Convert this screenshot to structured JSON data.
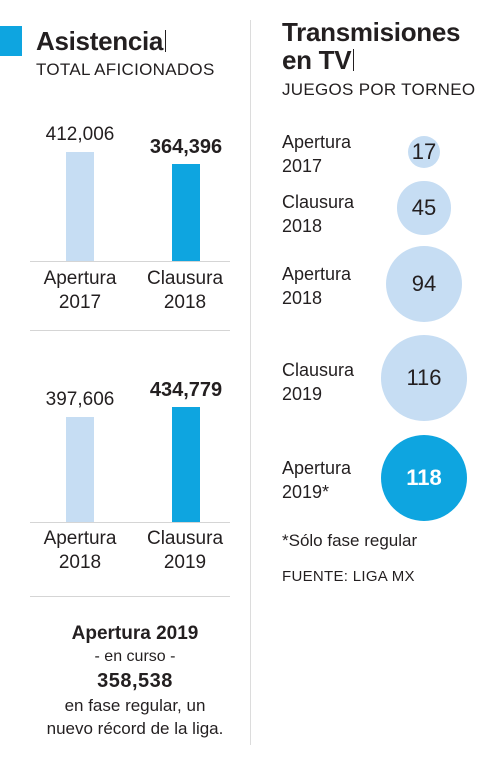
{
  "left": {
    "title": "Asistencia",
    "subtitle": "TOTAL AFICIONADOS"
  },
  "right": {
    "title_line1": "Transmisiones",
    "title_line2": "en TV",
    "subtitle": "JUEGOS POR TORNEO"
  },
  "chart_data": [
    {
      "type": "bar",
      "title": "Asistencia",
      "subtitle": "TOTAL AFICIONADOS",
      "categories": [
        [
          "Apertura",
          "2017"
        ],
        [
          "Clausura",
          "2018"
        ]
      ],
      "values": [
        412006,
        364396
      ],
      "value_labels": [
        "412,006",
        "364,396"
      ],
      "colors": [
        "#c6ddf3",
        "#0ea5e0"
      ]
    },
    {
      "type": "bar",
      "categories": [
        [
          "Apertura",
          "2018"
        ],
        [
          "Clausura",
          "2019"
        ]
      ],
      "values": [
        397606,
        434779
      ],
      "value_labels": [
        "397,606",
        "434,779"
      ],
      "colors": [
        "#c6ddf3",
        "#0ea5e0"
      ]
    },
    {
      "type": "bubble",
      "title": "Transmisiones en TV",
      "subtitle": "JUEGOS POR TORNEO",
      "categories": [
        [
          "Apertura",
          "2017"
        ],
        [
          "Clausura",
          "2018"
        ],
        [
          "Apertura",
          "2018"
        ],
        [
          "Clausura",
          "2019"
        ],
        [
          "Apertura",
          "2019*"
        ]
      ],
      "values": [
        17,
        45,
        94,
        116,
        118
      ],
      "colors": [
        "#c6ddf3",
        "#c6ddf3",
        "#c6ddf3",
        "#c6ddf3",
        "#0ea5e0"
      ]
    }
  ],
  "summary": {
    "title": "Apertura 2019",
    "status": "- en curso -",
    "value": "358,538",
    "text_line1": "en fase regular, un",
    "text_line2": "nuevo récord de la liga."
  },
  "footnote": "*Sólo fase regular",
  "source": "FUENTE: LIGA MX"
}
